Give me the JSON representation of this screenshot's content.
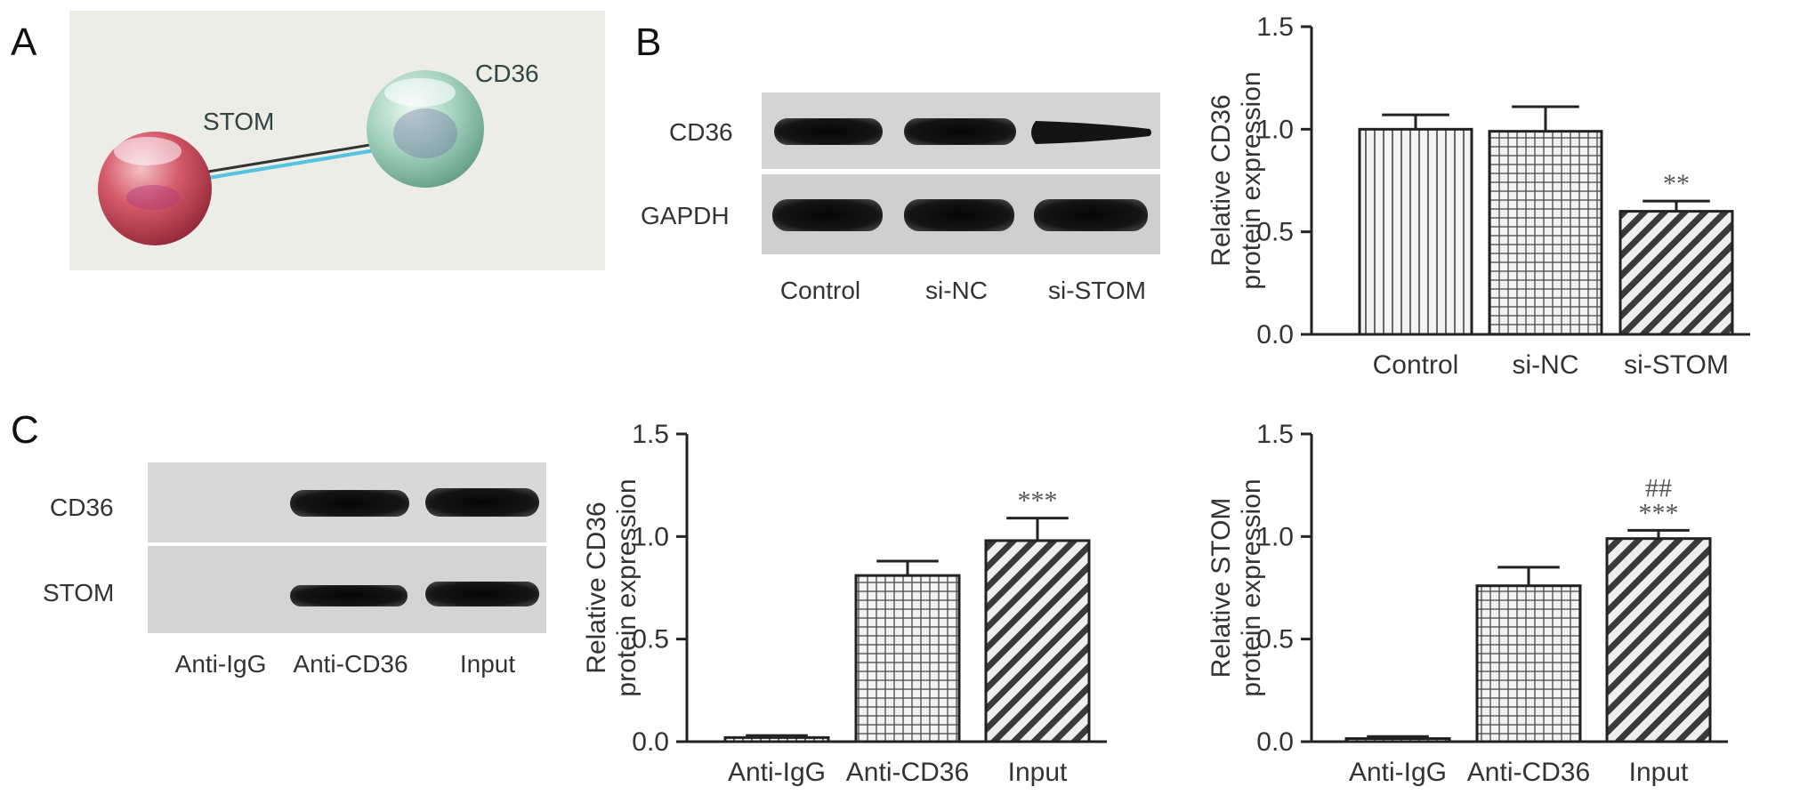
{
  "panels": {
    "a": {
      "letter": "A",
      "nodes": [
        "STOM",
        "CD36"
      ],
      "colors": {
        "stom": "#cc4a5c",
        "cd36": "#9cc8b6",
        "edge_dark": "#333333",
        "edge_cyan": "#55c2e0",
        "bg": "#ecede6"
      }
    },
    "b": {
      "letter": "B",
      "blot": {
        "rows": [
          "CD36",
          "GAPDH"
        ],
        "lanes": [
          "Control",
          "si-NC",
          "si-STOM"
        ]
      }
    },
    "c": {
      "letter": "C",
      "blot": {
        "rows": [
          "CD36",
          "STOM"
        ],
        "lanes": [
          "Anti-IgG",
          "Anti-CD36",
          "Input"
        ]
      }
    }
  },
  "chart_data": [
    {
      "id": "b-chart",
      "type": "bar",
      "categories": [
        "Control",
        "si-NC",
        "si-STOM"
      ],
      "values": [
        1.0,
        0.99,
        0.6
      ],
      "errors": [
        0.07,
        0.12,
        0.05
      ],
      "patterns": [
        "vertical",
        "grid",
        "diagonal"
      ],
      "significance": [
        "",
        "",
        "**"
      ],
      "ylabel": [
        "Relative CD36",
        "protein expression"
      ],
      "ylim": [
        0,
        1.5
      ],
      "yticks": [
        "0.0",
        "0.5",
        "1.0",
        "1.5"
      ],
      "title": "",
      "xlabel": ""
    },
    {
      "id": "c-chart-cd36",
      "type": "bar",
      "categories": [
        "Anti-IgG",
        "Anti-CD36",
        "Input"
      ],
      "values": [
        0.02,
        0.81,
        0.98
      ],
      "errors": [
        0.01,
        0.07,
        0.11
      ],
      "patterns": [
        "vertical",
        "grid",
        "diagonal"
      ],
      "significance": [
        "",
        "",
        "***"
      ],
      "ylabel": [
        "Relative CD36",
        "protein expression"
      ],
      "ylim": [
        0,
        1.5
      ],
      "yticks": [
        "0.0",
        "0.5",
        "1.0",
        "1.5"
      ],
      "title": "",
      "xlabel": ""
    },
    {
      "id": "c-chart-stom",
      "type": "bar",
      "categories": [
        "Anti-IgG",
        "Anti-CD36",
        "Input"
      ],
      "values": [
        0.015,
        0.76,
        0.99
      ],
      "errors": [
        0.01,
        0.09,
        0.04
      ],
      "patterns": [
        "vertical",
        "grid",
        "diagonal"
      ],
      "significance": [
        "",
        "",
        "##\n***"
      ],
      "ylabel": [
        "Relative STOM",
        "protein expression"
      ],
      "ylim": [
        0,
        1.5
      ],
      "yticks": [
        "0.0",
        "0.5",
        "1.0",
        "1.5"
      ],
      "title": "",
      "xlabel": ""
    }
  ]
}
